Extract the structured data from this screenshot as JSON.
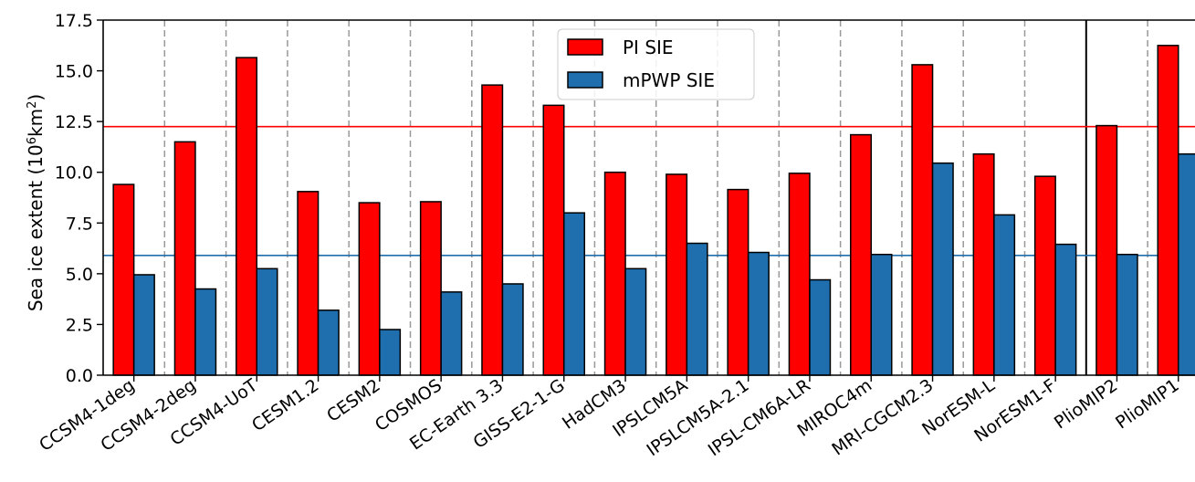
{
  "chart_data": {
    "type": "bar",
    "ylabel": "Sea ice extent (10",
    "ylabel_sup1": "6",
    "ylabel_mid": "km",
    "ylabel_sup2": "2",
    "ylabel_end": ")",
    "ylim": [
      0,
      17.5
    ],
    "yticks": [
      "0.0",
      "2.5",
      "5.0",
      "7.5",
      "10.0",
      "12.5",
      "15.0",
      "17.5"
    ],
    "categories": [
      "CCSM4-1deg",
      "CCSM4-2deg",
      "CCSM4-UoT",
      "CESM1.2",
      "CESM2",
      "COSMOS",
      "EC-Earth 3.3",
      "GISS-E2-1-G",
      "HadCM3",
      "IPSLCM5A",
      "IPSLCM5A-2.1",
      "IPSL-CM6A-LR",
      "MIROC4m",
      "MRI-CGCM2.3",
      "NorESM-L",
      "NorESM1-F",
      "PlioMIP2",
      "PlioMIP1"
    ],
    "series": [
      {
        "name": "PI SIE",
        "color": "#ff0000",
        "values": [
          9.4,
          11.5,
          15.65,
          9.05,
          8.5,
          8.55,
          14.3,
          13.3,
          10.0,
          9.9,
          9.15,
          9.95,
          11.85,
          15.3,
          10.9,
          9.8,
          12.3,
          16.25
        ]
      },
      {
        "name": "mPWP SIE",
        "color": "#1f6faf",
        "values": [
          4.95,
          4.25,
          5.25,
          3.2,
          2.25,
          4.1,
          4.5,
          8.0,
          5.25,
          6.5,
          6.05,
          4.7,
          5.95,
          10.45,
          7.9,
          6.45,
          5.95,
          10.9
        ]
      }
    ],
    "reference_lines": [
      {
        "value": 12.25,
        "color": "#ff0000"
      },
      {
        "value": 5.9,
        "color": "#1f6faf"
      }
    ],
    "legend_position": "top-center",
    "grid": "dashed vertical separators between models"
  }
}
